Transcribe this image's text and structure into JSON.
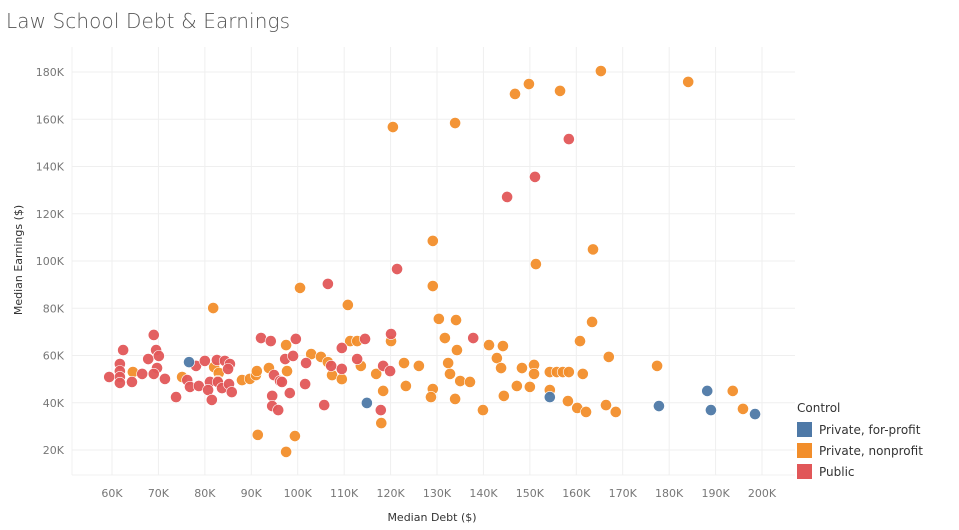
{
  "title": "Law School Debt & Earnings",
  "chart_data": {
    "type": "scatter",
    "title": "Law School Debt & Earnings",
    "xlabel": "Median Debt ($)",
    "ylabel": "Median Earnings ($)",
    "xlim": [
      51000,
      207000
    ],
    "ylim": [
      10000,
      190000
    ],
    "x_ticks": [
      60000,
      70000,
      80000,
      90000,
      100000,
      110000,
      120000,
      130000,
      140000,
      150000,
      160000,
      170000,
      180000,
      190000,
      200000
    ],
    "x_tick_labels": [
      "60K",
      "70K",
      "80K",
      "90K",
      "100K",
      "110K",
      "120K",
      "130K",
      "140K",
      "150K",
      "160K",
      "170K",
      "180K",
      "190K",
      "200K"
    ],
    "y_ticks": [
      20000,
      40000,
      60000,
      80000,
      100000,
      120000,
      140000,
      160000,
      180000
    ],
    "y_tick_labels": [
      "20K",
      "40K",
      "60K",
      "80K",
      "100K",
      "120K",
      "140K",
      "160K",
      "180K"
    ],
    "grid": true,
    "legend": {
      "title": "Control",
      "placement": "right-bottom"
    },
    "series": [
      {
        "name": "Private, for-profit",
        "color": "#4e79a7",
        "points": [
          [
            76.6,
            57.2
          ],
          [
            114.9,
            39.9
          ],
          [
            154.3,
            42.4
          ],
          [
            177.8,
            38.6
          ],
          [
            188.2,
            45.0
          ],
          [
            189.0,
            36.9
          ],
          [
            198.5,
            35.2
          ]
        ]
      },
      {
        "name": "Private, nonprofit",
        "color": "#f28e2b",
        "points": [
          [
            64.5,
            53.0
          ],
          [
            75.1,
            50.9
          ],
          [
            81.8,
            80.1
          ],
          [
            82.0,
            55.1
          ],
          [
            83.0,
            52.6
          ],
          [
            82.8,
            49.2
          ],
          [
            88.0,
            49.6
          ],
          [
            89.7,
            50.1
          ],
          [
            91.0,
            51.7
          ],
          [
            91.2,
            53.4
          ],
          [
            91.4,
            26.4
          ],
          [
            93.8,
            54.7
          ],
          [
            97.5,
            64.4
          ],
          [
            97.7,
            53.4
          ],
          [
            99.4,
            25.9
          ],
          [
            97.5,
            19.2
          ],
          [
            100.5,
            88.6
          ],
          [
            102.9,
            60.6
          ],
          [
            105.0,
            59.4
          ],
          [
            106.5,
            57.2
          ],
          [
            107.4,
            51.7
          ],
          [
            110.8,
            81.4
          ],
          [
            109.5,
            50.0
          ],
          [
            111.3,
            66.1
          ],
          [
            112.8,
            66.1
          ],
          [
            113.6,
            55.6
          ],
          [
            116.9,
            52.2
          ],
          [
            118.0,
            31.4
          ],
          [
            118.4,
            45.0
          ],
          [
            120.1,
            66.1
          ],
          [
            120.5,
            156.7
          ],
          [
            122.9,
            56.8
          ],
          [
            123.3,
            47.1
          ],
          [
            126.1,
            55.6
          ],
          [
            129.1,
            108.5
          ],
          [
            129.1,
            89.4
          ],
          [
            129.1,
            45.8
          ],
          [
            128.7,
            42.4
          ],
          [
            130.4,
            75.5
          ],
          [
            131.7,
            67.4
          ],
          [
            132.4,
            56.8
          ],
          [
            132.8,
            52.2
          ],
          [
            133.9,
            158.4
          ],
          [
            133.9,
            41.6
          ],
          [
            134.1,
            75.0
          ],
          [
            134.3,
            62.3
          ],
          [
            135.0,
            49.2
          ],
          [
            137.1,
            48.8
          ],
          [
            141.2,
            64.4
          ],
          [
            144.2,
            64.0
          ],
          [
            142.9,
            58.9
          ],
          [
            143.8,
            54.7
          ],
          [
            144.4,
            42.9
          ],
          [
            139.9,
            36.9
          ],
          [
            146.8,
            170.7
          ],
          [
            149.8,
            174.9
          ],
          [
            156.5,
            172.0
          ],
          [
            165.3,
            180.4
          ],
          [
            184.1,
            175.8
          ],
          [
            147.2,
            47.1
          ],
          [
            150.0,
            46.7
          ],
          [
            148.3,
            54.7
          ],
          [
            150.9,
            56.0
          ],
          [
            150.9,
            52.2
          ],
          [
            151.3,
            98.7
          ],
          [
            154.3,
            53.0
          ],
          [
            154.3,
            45.4
          ],
          [
            155.8,
            53.0
          ],
          [
            157.1,
            53.0
          ],
          [
            158.4,
            53.0
          ],
          [
            161.4,
            52.2
          ],
          [
            160.8,
            66.1
          ],
          [
            163.4,
            74.2
          ],
          [
            163.6,
            104.9
          ],
          [
            167.0,
            59.4
          ],
          [
            158.2,
            40.7
          ],
          [
            160.2,
            37.8
          ],
          [
            162.1,
            36.1
          ],
          [
            166.4,
            39.0
          ],
          [
            168.5,
            36.1
          ],
          [
            177.4,
            55.6
          ],
          [
            193.7,
            45.0
          ],
          [
            195.9,
            37.4
          ]
        ]
      },
      {
        "name": "Public",
        "color": "#e15759",
        "points": [
          [
            59.4,
            50.9
          ],
          [
            62.4,
            62.3
          ],
          [
            61.7,
            56.4
          ],
          [
            61.7,
            53.4
          ],
          [
            61.7,
            50.9
          ],
          [
            61.7,
            48.4
          ],
          [
            64.3,
            48.8
          ],
          [
            66.5,
            52.2
          ],
          [
            67.8,
            58.5
          ],
          [
            69.0,
            68.7
          ],
          [
            69.5,
            62.3
          ],
          [
            70.1,
            59.8
          ],
          [
            69.7,
            54.7
          ],
          [
            69.0,
            52.2
          ],
          [
            71.4,
            50.1
          ],
          [
            73.8,
            42.4
          ],
          [
            78.1,
            55.6
          ],
          [
            80.0,
            57.7
          ],
          [
            82.6,
            58.1
          ],
          [
            84.3,
            57.7
          ],
          [
            85.4,
            56.4
          ],
          [
            85.0,
            54.3
          ],
          [
            76.2,
            49.6
          ],
          [
            76.8,
            46.7
          ],
          [
            78.7,
            47.1
          ],
          [
            81.1,
            48.8
          ],
          [
            82.8,
            48.8
          ],
          [
            80.7,
            45.4
          ],
          [
            81.5,
            41.2
          ],
          [
            83.7,
            46.2
          ],
          [
            85.2,
            47.9
          ],
          [
            85.8,
            44.5
          ],
          [
            92.1,
            67.4
          ],
          [
            94.2,
            66.1
          ],
          [
            99.6,
            67.0
          ],
          [
            97.3,
            58.5
          ],
          [
            99.0,
            59.8
          ],
          [
            101.8,
            56.8
          ],
          [
            109.5,
            63.2
          ],
          [
            109.5,
            54.3
          ],
          [
            94.9,
            51.7
          ],
          [
            96.2,
            49.2
          ],
          [
            96.6,
            48.8
          ],
          [
            98.3,
            44.1
          ],
          [
            101.6,
            47.9
          ],
          [
            94.5,
            42.9
          ],
          [
            94.5,
            38.6
          ],
          [
            95.8,
            36.9
          ],
          [
            105.7,
            39.0
          ],
          [
            106.5,
            90.3
          ],
          [
            107.2,
            55.6
          ],
          [
            112.8,
            58.5
          ],
          [
            114.5,
            67.0
          ],
          [
            118.4,
            55.6
          ],
          [
            119.9,
            53.4
          ],
          [
            120.1,
            69.1
          ],
          [
            117.9,
            36.9
          ],
          [
            121.4,
            96.6
          ],
          [
            137.8,
            67.4
          ],
          [
            145.1,
            127.1
          ],
          [
            151.1,
            135.6
          ],
          [
            158.4,
            151.6
          ]
        ]
      }
    ],
    "point_units": "thousands of dollars [debt, earnings]"
  }
}
